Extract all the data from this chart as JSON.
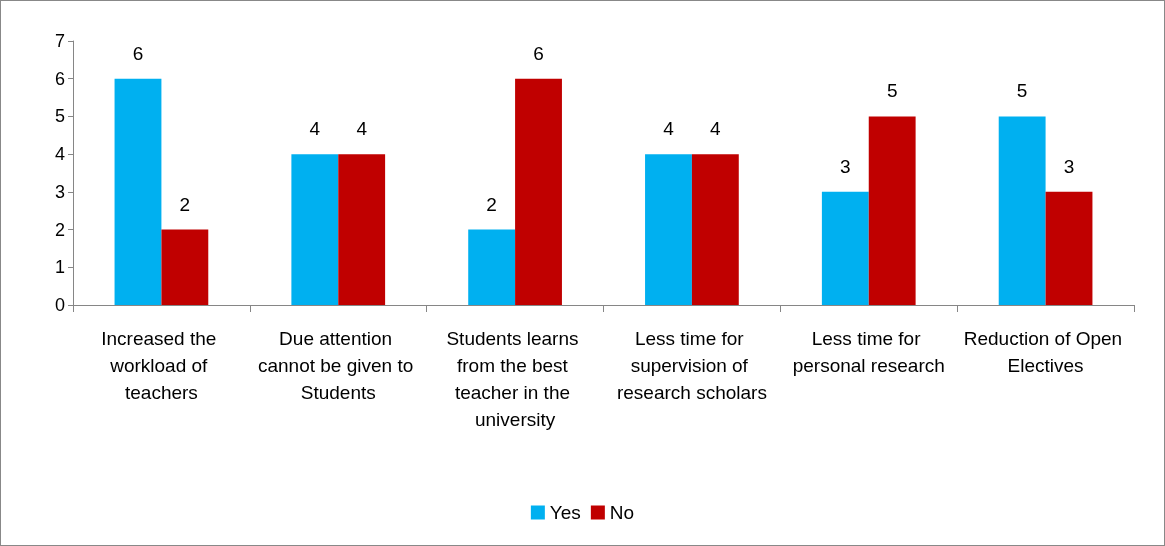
{
  "chart_data": {
    "type": "bar",
    "categories": [
      "Increased the workload of teachers",
      "Due attention cannot be given to Students",
      "Students learns from the best teacher in the university",
      "Less time for supervision of research scholars",
      "Less time for personal research",
      "Reduction of Open Electives"
    ],
    "series": [
      {
        "name": "Yes",
        "color": "#00b0f0",
        "values": [
          6,
          4,
          2,
          4,
          3,
          5
        ]
      },
      {
        "name": "No",
        "color": "#c00000",
        "values": [
          2,
          4,
          6,
          4,
          5,
          3
        ]
      }
    ],
    "ylim": [
      0,
      7
    ],
    "yticks": [
      0,
      1,
      2,
      3,
      4,
      5,
      6,
      7
    ],
    "grid": false,
    "legend": "bottom",
    "data_labels": true
  }
}
